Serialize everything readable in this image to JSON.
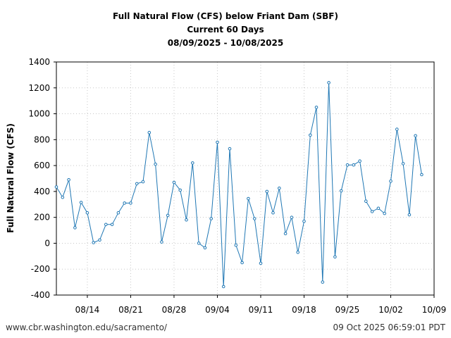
{
  "chart_data": {
    "type": "line",
    "title": "Full Natural Flow (CFS) below Friant Dam (SBF)",
    "subtitle": "Current 60 Days",
    "date_range": "08/09/2025 - 10/08/2025",
    "xlabel": "",
    "ylabel": "Full Natural Flow (CFS)",
    "ylim": [
      -400,
      1400
    ],
    "yticks": [
      -400,
      -200,
      0,
      200,
      400,
      600,
      800,
      1000,
      1200,
      1400
    ],
    "xlim": [
      "2025-08-09",
      "2025-10-09"
    ],
    "xticks": [
      "2025-08-14",
      "2025-08-21",
      "2025-08-28",
      "2025-09-04",
      "2025-09-11",
      "2025-09-18",
      "2025-09-25",
      "2025-10-02",
      "2025-10-09"
    ],
    "xtick_labels": [
      "08/14",
      "08/21",
      "08/28",
      "09/04",
      "09/11",
      "09/18",
      "09/25",
      "10/02",
      "10/09"
    ],
    "grid": true,
    "line_color": "#1f77b4",
    "x": [
      "2025-08-09",
      "2025-08-10",
      "2025-08-11",
      "2025-08-12",
      "2025-08-13",
      "2025-08-14",
      "2025-08-15",
      "2025-08-16",
      "2025-08-17",
      "2025-08-18",
      "2025-08-19",
      "2025-08-20",
      "2025-08-21",
      "2025-08-22",
      "2025-08-23",
      "2025-08-24",
      "2025-08-25",
      "2025-08-26",
      "2025-08-27",
      "2025-08-28",
      "2025-08-29",
      "2025-08-30",
      "2025-08-31",
      "2025-09-01",
      "2025-09-02",
      "2025-09-03",
      "2025-09-04",
      "2025-09-05",
      "2025-09-06",
      "2025-09-07",
      "2025-09-08",
      "2025-09-09",
      "2025-09-10",
      "2025-09-11",
      "2025-09-12",
      "2025-09-13",
      "2025-09-14",
      "2025-09-15",
      "2025-09-16",
      "2025-09-17",
      "2025-09-18",
      "2025-09-19",
      "2025-09-20",
      "2025-09-21",
      "2025-09-22",
      "2025-09-23",
      "2025-09-24",
      "2025-09-25",
      "2025-09-26",
      "2025-09-27",
      "2025-09-28",
      "2025-09-29",
      "2025-09-30",
      "2025-10-01",
      "2025-10-02",
      "2025-10-03",
      "2025-10-04",
      "2025-10-05",
      "2025-10-06",
      "2025-10-07"
    ],
    "values": [
      435,
      355,
      490,
      120,
      315,
      235,
      5,
      25,
      145,
      145,
      235,
      310,
      310,
      460,
      475,
      855,
      610,
      10,
      215,
      470,
      410,
      180,
      620,
      0,
      -35,
      190,
      780,
      -335,
      730,
      -15,
      -150,
      345,
      190,
      -155,
      400,
      235,
      425,
      75,
      200,
      -70,
      170,
      835,
      1050,
      -300,
      1240,
      -105,
      405,
      605,
      605,
      635,
      325,
      245,
      270,
      230,
      480,
      880,
      615,
      220,
      830,
      530
    ]
  },
  "footer": {
    "source": "www.cbr.washington.edu/sacramento/",
    "timestamp": "09 Oct 2025 06:59:01 PDT"
  }
}
